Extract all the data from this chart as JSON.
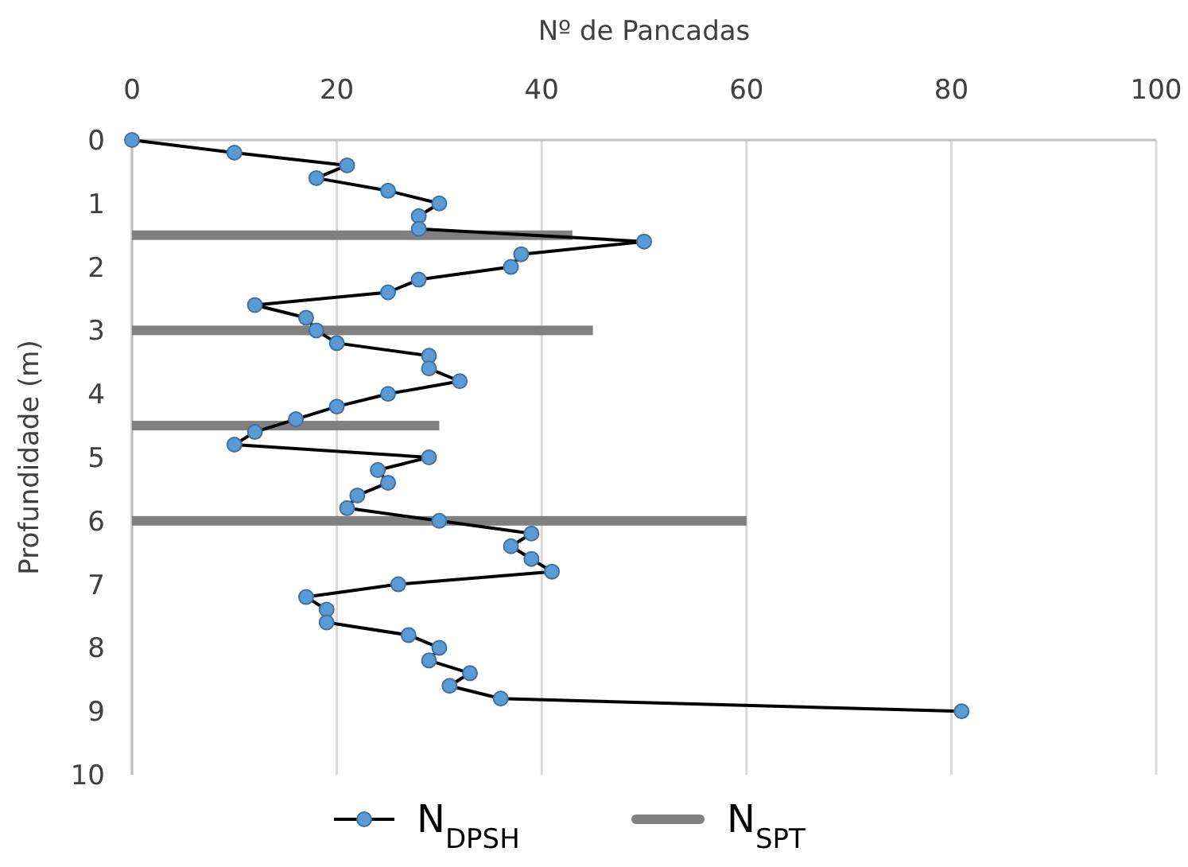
{
  "chart_data": {
    "type": "line",
    "orientation": "horizontal",
    "title": "Nº de Pancadas",
    "ylabel": "Profundidade (m)",
    "xlim": [
      0,
      100
    ],
    "xticks": [
      0,
      20,
      40,
      60,
      80,
      100
    ],
    "ylim": [
      10,
      0
    ],
    "yticks": [
      0,
      1,
      2,
      3,
      4,
      5,
      6,
      7,
      8,
      9,
      10
    ],
    "grid": "x",
    "legend": "bottom",
    "series": [
      {
        "name": "N$_{DPSH}$",
        "marker": "circle",
        "color": "#5b9bd5",
        "x": [
          0,
          0.2,
          0.4,
          0.6,
          0.8,
          1,
          1.2,
          1.4,
          1.6,
          1.8,
          2,
          2.2,
          2.4,
          2.6,
          2.8,
          3,
          3.2,
          3.4,
          3.6,
          3.8,
          4,
          4.2,
          4.4,
          4.6,
          4.8,
          5,
          5.2,
          5.4,
          5.6,
          5.8,
          6,
          6.2,
          6.4,
          6.6,
          6.8,
          7,
          7.2,
          7.4,
          7.6,
          7.8,
          8,
          8.2,
          8.4,
          8.6,
          8.8,
          9
        ],
        "values": [
          0,
          10,
          21,
          18,
          25,
          30,
          28,
          28,
          50,
          38,
          37,
          28,
          25,
          12,
          17,
          18,
          20,
          29,
          29,
          32,
          25,
          20,
          16,
          12,
          10,
          29,
          24,
          25,
          22,
          21,
          30,
          39,
          37,
          39,
          41,
          26,
          17,
          19,
          19,
          27,
          30,
          29,
          33,
          31,
          36,
          81
        ]
      },
      {
        "name": "N$_{SPT}$",
        "type": "bar",
        "color": "#808080",
        "x": [
          1.5,
          3,
          4.5,
          6
        ],
        "values": [
          43,
          45,
          30,
          60
        ]
      }
    ]
  }
}
